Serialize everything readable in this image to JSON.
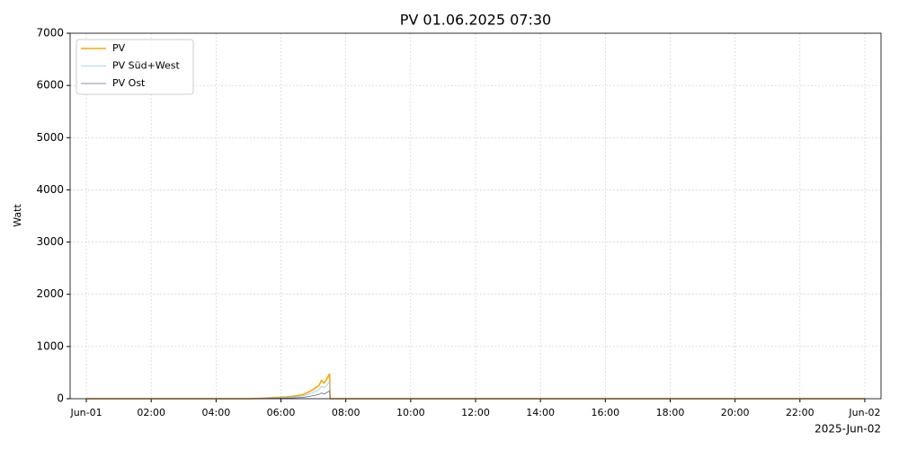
{
  "chart_data": {
    "type": "line",
    "title": "PV 01.06.2025 07:30",
    "y_label": "Watt",
    "x_offset_label": "2025-Jun-02",
    "x": [
      "2025-06-01 00:00",
      "2025-06-01 05:00",
      "2025-06-01 05:30",
      "2025-06-01 05:50",
      "2025-06-01 06:00",
      "2025-06-01 06:10",
      "2025-06-01 06:20",
      "2025-06-01 06:30",
      "2025-06-01 06:40",
      "2025-06-01 06:50",
      "2025-06-01 07:00",
      "2025-06-01 07:10",
      "2025-06-01 07:15",
      "2025-06-01 07:20",
      "2025-06-01 07:25",
      "2025-06-01 07:30",
      "2025-06-01 07:31",
      "2025-06-02 00:00"
    ],
    "series": [
      {
        "name": "PV",
        "color": "#ffa500",
        "width": 1.6,
        "values": [
          0,
          0,
          10,
          25,
          30,
          35,
          45,
          60,
          80,
          120,
          180,
          250,
          350,
          300,
          380,
          480,
          0,
          0
        ]
      },
      {
        "name": "PV Süd+West",
        "color": "#87cee0",
        "width": 0.8,
        "values": [
          0,
          0,
          7,
          17,
          20,
          24,
          30,
          40,
          55,
          80,
          120,
          170,
          240,
          210,
          260,
          330,
          0,
          0
        ]
      },
      {
        "name": "PV Ost",
        "color": "#6a6a9a",
        "width": 0.8,
        "values": [
          0,
          0,
          3,
          8,
          10,
          11,
          15,
          20,
          25,
          40,
          60,
          80,
          110,
          90,
          120,
          150,
          0,
          0
        ]
      }
    ],
    "xlim": [
      "2025-05-31 23:30",
      "2025-06-02 00:30"
    ],
    "xticks": [
      {
        "value": "2025-06-01 00:00",
        "label": "Jun-01"
      },
      {
        "value": "2025-06-01 02:00",
        "label": "02:00"
      },
      {
        "value": "2025-06-01 04:00",
        "label": "04:00"
      },
      {
        "value": "2025-06-01 06:00",
        "label": "06:00"
      },
      {
        "value": "2025-06-01 08:00",
        "label": "08:00"
      },
      {
        "value": "2025-06-01 10:00",
        "label": "10:00"
      },
      {
        "value": "2025-06-01 12:00",
        "label": "12:00"
      },
      {
        "value": "2025-06-01 14:00",
        "label": "14:00"
      },
      {
        "value": "2025-06-01 16:00",
        "label": "16:00"
      },
      {
        "value": "2025-06-01 18:00",
        "label": "18:00"
      },
      {
        "value": "2025-06-01 20:00",
        "label": "20:00"
      },
      {
        "value": "2025-06-01 22:00",
        "label": "22:00"
      },
      {
        "value": "2025-06-02 00:00",
        "label": "Jun-02"
      }
    ],
    "ylim": [
      0,
      7000
    ],
    "yticks": [
      0,
      1000,
      2000,
      3000,
      4000,
      5000,
      6000,
      7000
    ],
    "grid": true,
    "legend": "upper-left"
  }
}
